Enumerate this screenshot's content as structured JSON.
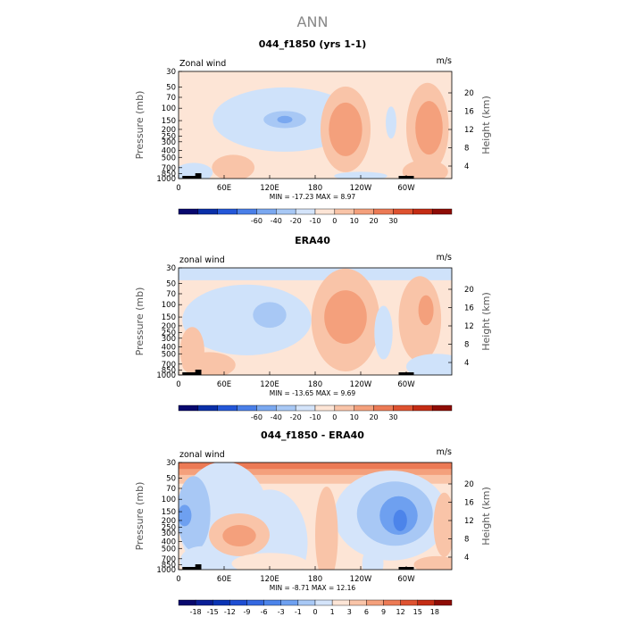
{
  "page_title": "ANN",
  "chart_data": [
    {
      "type": "heatmap",
      "title": "044_f1850 (yrs 1-1)",
      "field_label": "Zonal wind",
      "units": "m/s",
      "ylabel": "Pressure (mb)",
      "ylabel_right": "Height (km)",
      "x_ticks": [
        "0",
        "60E",
        "120E",
        "180",
        "120W",
        "60W"
      ],
      "x_tick_lon": [
        0,
        60,
        120,
        180,
        240,
        300
      ],
      "y_ticks": [
        "30",
        "50",
        "70",
        "100",
        "150",
        "200",
        "250",
        "300",
        "400",
        "500",
        "700",
        "850",
        "1000"
      ],
      "y_tick_p": [
        30,
        50,
        70,
        100,
        150,
        200,
        250,
        300,
        400,
        500,
        700,
        850,
        1000
      ],
      "y_right_ticks": [
        "4",
        "8",
        "12",
        "16",
        "20"
      ],
      "stats_text": "MIN = -17.23   MAX =   8.97",
      "colorbar": {
        "labels": [
          "-60",
          "-40",
          "-20",
          "-10",
          "0",
          "10",
          "20",
          "30"
        ],
        "colors": [
          "#08086e",
          "#0a2fa8",
          "#2457d8",
          "#4a7fe8",
          "#7aa8f0",
          "#a8c8f5",
          "#d4e4fa",
          "#fde5d6",
          "#f9c4a8",
          "#f4a07c",
          "#ec7a55",
          "#de5230",
          "#c42c14",
          "#8e0c05"
        ]
      },
      "blobs": [
        {
          "lon": 140,
          "p": 145,
          "rx": 95,
          "ry": 0.3,
          "fill": "#cfe2fa"
        },
        {
          "lon": 140,
          "p": 145,
          "rx": 28,
          "ry": 0.08,
          "fill": "#a8c8f5"
        },
        {
          "lon": 140,
          "p": 145,
          "rx": 10,
          "ry": 0.035,
          "fill": "#7aa8f0"
        },
        {
          "lon": 220,
          "p": 200,
          "rx": 33,
          "ry": 0.4,
          "fill": "#f9c4a8"
        },
        {
          "lon": 220,
          "p": 200,
          "rx": 22,
          "ry": 0.25,
          "fill": "#f4a07c"
        },
        {
          "lon": 328,
          "p": 190,
          "rx": 28,
          "ry": 0.42,
          "fill": "#f9c4a8"
        },
        {
          "lon": 330,
          "p": 190,
          "rx": 18,
          "ry": 0.25,
          "fill": "#f4a07c"
        },
        {
          "lon": 325,
          "p": 800,
          "rx": 30,
          "ry": 0.11,
          "fill": "#f9c4a8"
        },
        {
          "lon": 280,
          "p": 160,
          "rx": 7,
          "ry": 0.15,
          "fill": "#cfe2fa"
        },
        {
          "lon": 240,
          "p": 920,
          "rx": 35,
          "ry": 0.04,
          "fill": "#cfe2fa"
        },
        {
          "lon": 20,
          "p": 820,
          "rx": 25,
          "ry": 0.09,
          "fill": "#cfe2fa"
        },
        {
          "lon": 72,
          "p": 700,
          "rx": 28,
          "ry": 0.12,
          "fill": "#f9c4a8"
        }
      ]
    },
    {
      "type": "heatmap",
      "title": "ERA40",
      "field_label": "zonal wind",
      "units": "m/s",
      "ylabel": "Pressure (mb)",
      "ylabel_right": "Height (km)",
      "x_ticks": [
        "0",
        "60E",
        "120E",
        "180",
        "120W",
        "60W"
      ],
      "x_tick_lon": [
        0,
        60,
        120,
        180,
        240,
        300
      ],
      "y_ticks": [
        "30",
        "50",
        "70",
        "100",
        "150",
        "200",
        "250",
        "300",
        "400",
        "500",
        "700",
        "850",
        "1000"
      ],
      "y_tick_p": [
        30,
        50,
        70,
        100,
        150,
        200,
        250,
        300,
        400,
        500,
        700,
        850,
        1000
      ],
      "y_right_ticks": [
        "4",
        "8",
        "12",
        "16",
        "20"
      ],
      "stats_text": "MIN = -13.65   MAX =   9.69",
      "colorbar": {
        "labels": [
          "-60",
          "-40",
          "-20",
          "-10",
          "0",
          "10",
          "20",
          "30"
        ],
        "colors": [
          "#08086e",
          "#0a2fa8",
          "#2457d8",
          "#4a7fe8",
          "#7aa8f0",
          "#a8c8f5",
          "#d4e4fa",
          "#fde5d6",
          "#f9c4a8",
          "#f4a07c",
          "#ec7a55",
          "#de5230",
          "#c42c14",
          "#8e0c05"
        ]
      },
      "top_band": {
        "p_top": 30,
        "p_bot": 45,
        "fill": "#cfe2fa"
      },
      "blobs": [
        {
          "lon": 90,
          "p": 165,
          "rx": 85,
          "ry": 0.33,
          "fill": "#cfe2fa"
        },
        {
          "lon": 120,
          "p": 140,
          "rx": 22,
          "ry": 0.12,
          "fill": "#a8c8f5"
        },
        {
          "lon": 220,
          "p": 165,
          "rx": 45,
          "ry": 0.48,
          "fill": "#f9c4a8"
        },
        {
          "lon": 220,
          "p": 150,
          "rx": 28,
          "ry": 0.25,
          "fill": "#f4a07c"
        },
        {
          "lon": 318,
          "p": 160,
          "rx": 28,
          "ry": 0.4,
          "fill": "#f9c4a8"
        },
        {
          "lon": 326,
          "p": 120,
          "rx": 10,
          "ry": 0.14,
          "fill": "#f4a07c"
        },
        {
          "lon": 270,
          "p": 250,
          "rx": 12,
          "ry": 0.25,
          "fill": "#cfe2fa"
        },
        {
          "lon": 340,
          "p": 760,
          "rx": 40,
          "ry": 0.12,
          "fill": "#cfe2fa"
        },
        {
          "lon": 40,
          "p": 720,
          "rx": 35,
          "ry": 0.12,
          "fill": "#f9c4a8"
        },
        {
          "lon": 18,
          "p": 450,
          "rx": 16,
          "ry": 0.22,
          "fill": "#f9c4a8"
        }
      ]
    },
    {
      "type": "heatmap",
      "title": "044_f1850 - ERA40",
      "field_label": "zonal wind",
      "units": "m/s",
      "ylabel": "Pressure (mb)",
      "ylabel_right": "Height (km)",
      "x_ticks": [
        "0",
        "60E",
        "120E",
        "180",
        "120W",
        "60W"
      ],
      "x_tick_lon": [
        0,
        60,
        120,
        180,
        240,
        300
      ],
      "y_ticks": [
        "30",
        "50",
        "70",
        "100",
        "150",
        "200",
        "250",
        "300",
        "400",
        "500",
        "700",
        "850",
        "1000"
      ],
      "y_tick_p": [
        30,
        50,
        70,
        100,
        150,
        200,
        250,
        300,
        400,
        500,
        700,
        850,
        1000
      ],
      "y_right_ticks": [
        "4",
        "8",
        "12",
        "16",
        "20"
      ],
      "stats_text": "MIN =  -8.71   MAX =  12.16",
      "colorbar": {
        "labels": [
          "-18",
          "-15",
          "-12",
          "-9",
          "-6",
          "-3",
          "-1",
          "0",
          "1",
          "3",
          "6",
          "9",
          "12",
          "15",
          "18"
        ],
        "colors": [
          "#08086e",
          "#0a1e96",
          "#0a34b4",
          "#1e4ed2",
          "#3468e0",
          "#4c84ea",
          "#6ea0f0",
          "#a8c8f5",
          "#d4e4fa",
          "#fde5d6",
          "#f9c4a8",
          "#f4a07c",
          "#ec7a55",
          "#de5230",
          "#c42c14",
          "#8e0c05"
        ]
      },
      "base_fill": "#fde5d6",
      "top_layers": [
        {
          "p_top": 30,
          "p_bot": 60,
          "fill": "#f9c4a8"
        },
        {
          "p_top": 30,
          "p_bot": 45,
          "fill": "#f4a07c"
        },
        {
          "p_top": 30,
          "p_bot": 37,
          "fill": "#ec7a55"
        }
      ],
      "blobs": [
        {
          "lon": 60,
          "p": 200,
          "rx": 60,
          "ry": 0.55,
          "fill": "#d4e4fa"
        },
        {
          "lon": 20,
          "p": 160,
          "rx": 22,
          "ry": 0.35,
          "fill": "#a8c8f5"
        },
        {
          "lon": 8,
          "p": 170,
          "rx": 9,
          "ry": 0.1,
          "fill": "#6ea0f0"
        },
        {
          "lon": 280,
          "p": 170,
          "rx": 75,
          "ry": 0.42,
          "fill": "#d4e4fa"
        },
        {
          "lon": 285,
          "p": 160,
          "rx": 50,
          "ry": 0.3,
          "fill": "#a8c8f5"
        },
        {
          "lon": 290,
          "p": 170,
          "rx": 25,
          "ry": 0.18,
          "fill": "#6ea0f0"
        },
        {
          "lon": 292,
          "p": 200,
          "rx": 9,
          "ry": 0.1,
          "fill": "#4c84ea"
        },
        {
          "lon": 120,
          "p": 420,
          "rx": 50,
          "ry": 0.5,
          "fill": "#d4e4fa"
        },
        {
          "lon": 80,
          "p": 320,
          "rx": 40,
          "ry": 0.2,
          "fill": "#f9c4a8"
        },
        {
          "lon": 80,
          "p": 330,
          "rx": 22,
          "ry": 0.1,
          "fill": "#f4a07c"
        },
        {
          "lon": 195,
          "p": 320,
          "rx": 15,
          "ry": 0.45,
          "fill": "#f9c4a8"
        },
        {
          "lon": 350,
          "p": 230,
          "rx": 14,
          "ry": 0.3,
          "fill": "#f9c4a8"
        },
        {
          "lon": 30,
          "p": 760,
          "rx": 28,
          "ry": 0.14,
          "fill": "#d4e4fa"
        },
        {
          "lon": 120,
          "p": 820,
          "rx": 50,
          "ry": 0.1,
          "fill": "#fde5d6"
        },
        {
          "lon": 340,
          "p": 850,
          "rx": 30,
          "ry": 0.08,
          "fill": "#f9c4a8"
        },
        {
          "lon": 256,
          "p": 810,
          "rx": 14,
          "ry": 0.16,
          "fill": "#d4e4fa"
        }
      ]
    }
  ]
}
